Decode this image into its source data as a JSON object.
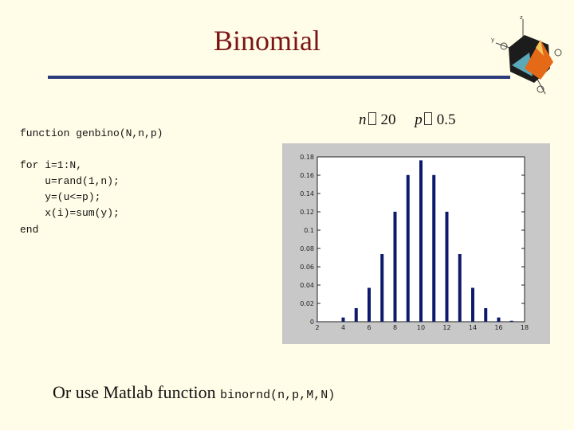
{
  "title": "Binomial",
  "formula": {
    "n_var": "n",
    "n_value": "20",
    "p_var": "p",
    "p_value": "0.5"
  },
  "code": {
    "lines": [
      "function genbino(N,n,p)",
      "",
      "for i=1:N,",
      "    u=rand(1,n);",
      "    y=(u<=p);",
      "    x(i)=sum(y);",
      "end"
    ]
  },
  "caption": {
    "text": "Or use Matlab function ",
    "code": "binornd(n,p,M,N)"
  },
  "colors": {
    "title": "#7b1515",
    "rule": "#2b3a7a",
    "bar": "#0d1a6b",
    "background": "#fffde7",
    "chart_frame": "#c8c8c8"
  },
  "icons": {
    "logo": "matlab-logo-icon"
  },
  "chart_data": {
    "type": "bar",
    "x": [
      2,
      4,
      5,
      6,
      7,
      8,
      9,
      10,
      11,
      12,
      13,
      14,
      15,
      16,
      17
    ],
    "values": [
      0.0002,
      0.0046,
      0.0148,
      0.037,
      0.0739,
      0.1201,
      0.1602,
      0.1762,
      0.1602,
      0.1201,
      0.0739,
      0.037,
      0.0148,
      0.0046,
      0.0011
    ],
    "xlim": [
      2,
      18
    ],
    "ylim": [
      0,
      0.18
    ],
    "x_ticks": [
      2,
      4,
      6,
      8,
      10,
      12,
      14,
      16,
      18
    ],
    "x_tick_labels": [
      "2",
      "4",
      "6",
      "8",
      "10",
      "12",
      "14",
      "16",
      "18"
    ],
    "y_ticks": [
      0,
      0.02,
      0.04,
      0.06,
      0.08,
      0.1,
      0.12,
      0.14,
      0.16,
      0.18
    ],
    "y_tick_labels": [
      "0",
      "0.02",
      "0.04",
      "0.06",
      "0.08",
      "0.1",
      "0.12",
      "0.14",
      "0.16",
      "0.18"
    ],
    "grid": false,
    "title": "",
    "xlabel": "",
    "ylabel": ""
  }
}
